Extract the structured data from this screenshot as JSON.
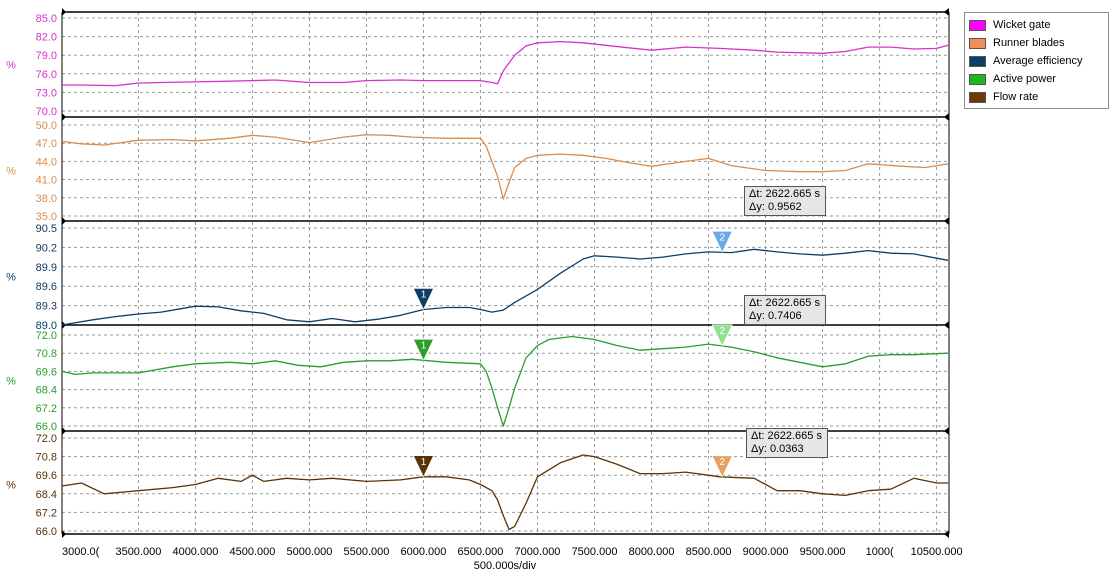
{
  "colors": {
    "wicket_gate": "#d433c8",
    "runner_blades": "#d88d4f",
    "average_efficiency": "#0e3d66",
    "active_power": "#2a9d2a",
    "flow_rate": "#5a3306",
    "cursor2_efficiency": "#6aa8e8",
    "cursor2_power": "#8fe08f",
    "cursor2_flow": "#e8a060",
    "grid": "#9a9a9a"
  },
  "legend": [
    {
      "label": "Wicket gate",
      "color": "#ff00ff"
    },
    {
      "label": "Runner blades",
      "color": "#f28c5a"
    },
    {
      "label": "Average efficiency",
      "color": "#0e3d66"
    },
    {
      "label": "Active power",
      "color": "#22b522"
    },
    {
      "label": "Flow rate",
      "color": "#6b3a0a"
    }
  ],
  "x_axis": {
    "label": "500.000s/div",
    "tick_labels": [
      "3000.0(",
      "3500.000",
      "4000.000",
      "4500.000",
      "5000.000",
      "5500.000",
      "6000.000",
      "6500.000",
      "7000.000",
      "7500.000",
      "8000.000",
      "8500.000",
      "9000.000",
      "9500.000",
      "1000(",
      "10500.000"
    ]
  },
  "cursors": {
    "c1_label": "1",
    "c2_label": "2",
    "c1_x": 6000,
    "c2_x": 8620
  },
  "delta_boxes": [
    {
      "dt": "Δt: 2622.665 s",
      "dy": "Δy: 0.9562"
    },
    {
      "dt": "Δt: 2622.665 s",
      "dy": "Δy: 0.7406"
    },
    {
      "dt": "Δt: 2622.665 s",
      "dy": "Δy: 0.0363"
    }
  ],
  "chart_data": [
    {
      "type": "line",
      "name": "Wicket gate",
      "ylabel": "%",
      "ylim": [
        70.0,
        85.0
      ],
      "ytick_labels": [
        "85.0",
        "82.0",
        "79.0",
        "76.0",
        "73.0",
        "70.0"
      ],
      "x": [
        2830,
        3000,
        3300,
        3400,
        3500,
        3700,
        4000,
        4300,
        4500,
        4700,
        5000,
        5300,
        5500,
        5800,
        6000,
        6300,
        6500,
        6600,
        6650,
        6700,
        6800,
        6900,
        7000,
        7200,
        7400,
        7600,
        7800,
        8000,
        8300,
        8600,
        8900,
        9100,
        9300,
        9500,
        9700,
        9900,
        10100,
        10300,
        10500,
        10600
      ],
      "y": [
        74.2,
        74.2,
        74.1,
        74.3,
        74.5,
        74.6,
        74.7,
        74.8,
        74.9,
        75.0,
        74.6,
        74.6,
        74.9,
        75.0,
        74.9,
        74.9,
        74.9,
        74.6,
        74.4,
        76.5,
        79.0,
        80.5,
        81.0,
        81.2,
        81.0,
        80.6,
        80.2,
        79.8,
        80.3,
        80.1,
        79.8,
        79.5,
        79.4,
        79.3,
        79.6,
        80.3,
        80.3,
        80.0,
        80.1,
        80.6
      ]
    },
    {
      "type": "line",
      "name": "Runner blades",
      "ylabel": "%",
      "ylim": [
        35.0,
        50.0
      ],
      "ytick_labels": [
        "50.0",
        "47.0",
        "44.0",
        "41.0",
        "38.0",
        "35.0"
      ],
      "x": [
        2830,
        3000,
        3200,
        3500,
        3800,
        4000,
        4300,
        4500,
        4700,
        5000,
        5300,
        5500,
        5700,
        5900,
        6200,
        6500,
        6550,
        6600,
        6650,
        6700,
        6750,
        6800,
        6900,
        7000,
        7200,
        7400,
        7600,
        7800,
        8000,
        8300,
        8500,
        8700,
        9000,
        9300,
        9500,
        9700,
        9900,
        10200,
        10400,
        10600
      ],
      "y": [
        47.3,
        46.9,
        46.7,
        47.5,
        47.6,
        47.4,
        47.8,
        48.3,
        48.0,
        47.1,
        48.0,
        48.4,
        48.3,
        48.0,
        47.8,
        47.8,
        46.5,
        44.0,
        41.5,
        37.8,
        40.5,
        43.0,
        44.5,
        45.0,
        45.2,
        45.0,
        44.5,
        43.8,
        43.2,
        44.0,
        44.5,
        43.3,
        42.5,
        42.3,
        42.3,
        42.5,
        43.6,
        43.2,
        43.0,
        43.6
      ]
    },
    {
      "type": "line",
      "name": "Average efficiency",
      "ylabel": "%",
      "ylim": [
        89.0,
        90.5
      ],
      "ytick_labels": [
        "90.5",
        "90.2",
        "89.9",
        "89.6",
        "89.3",
        "89.0"
      ],
      "x": [
        2830,
        3100,
        3300,
        3500,
        3700,
        3900,
        4000,
        4200,
        4400,
        4600,
        4800,
        5000,
        5200,
        5400,
        5600,
        5800,
        6000,
        6200,
        6400,
        6500,
        6600,
        6700,
        6800,
        7000,
        7200,
        7400,
        7500,
        7700,
        7900,
        8100,
        8300,
        8500,
        8700,
        8900,
        9100,
        9300,
        9500,
        9700,
        9900,
        10100,
        10300,
        10600
      ],
      "y": [
        89.0,
        89.08,
        89.13,
        89.17,
        89.2,
        89.26,
        89.29,
        89.28,
        89.22,
        89.18,
        89.08,
        89.05,
        89.1,
        89.05,
        89.09,
        89.15,
        89.24,
        89.27,
        89.27,
        89.24,
        89.2,
        89.23,
        89.35,
        89.55,
        89.8,
        90.02,
        90.07,
        90.05,
        90.02,
        90.05,
        90.1,
        90.13,
        90.12,
        90.17,
        90.13,
        90.1,
        90.08,
        90.11,
        90.15,
        90.11,
        90.1,
        90.0
      ]
    },
    {
      "type": "line",
      "name": "Active power",
      "ylabel": "%",
      "ylim": [
        66.0,
        72.0
      ],
      "ytick_labels": [
        "72.0",
        "70.8",
        "69.6",
        "68.4",
        "67.2",
        "66.0"
      ],
      "x": [
        2830,
        2950,
        3100,
        3300,
        3500,
        3800,
        4000,
        4300,
        4500,
        4700,
        4900,
        5100,
        5300,
        5500,
        5700,
        5900,
        6200,
        6500,
        6550,
        6600,
        6650,
        6700,
        6750,
        6800,
        6900,
        7000,
        7100,
        7300,
        7500,
        7700,
        7900,
        8100,
        8300,
        8500,
        8700,
        8900,
        9100,
        9300,
        9500,
        9700,
        9900,
        10100,
        10300,
        10600
      ],
      "y": [
        69.6,
        69.4,
        69.5,
        69.5,
        69.5,
        69.9,
        70.1,
        70.2,
        70.1,
        70.3,
        70.0,
        69.9,
        70.2,
        70.3,
        70.3,
        70.4,
        70.2,
        70.1,
        69.6,
        68.5,
        67.2,
        66.0,
        67.2,
        68.5,
        70.5,
        71.3,
        71.7,
        71.9,
        71.7,
        71.3,
        71.0,
        71.1,
        71.2,
        71.4,
        71.2,
        70.9,
        70.5,
        70.2,
        69.9,
        70.1,
        70.6,
        70.7,
        70.7,
        70.8
      ]
    },
    {
      "type": "line",
      "name": "Flow rate",
      "ylabel": "%",
      "ylim": [
        66.0,
        72.0
      ],
      "ytick_labels": [
        "72.0",
        "70.8",
        "69.6",
        "68.4",
        "67.2",
        "66.0"
      ],
      "x": [
        2830,
        3000,
        3200,
        3500,
        3800,
        4000,
        4200,
        4400,
        4500,
        4600,
        4800,
        5000,
        5200,
        5500,
        5800,
        6000,
        6200,
        6400,
        6500,
        6600,
        6650,
        6700,
        6750,
        6800,
        6900,
        7000,
        7200,
        7400,
        7500,
        7700,
        7900,
        8100,
        8300,
        8600,
        8900,
        9100,
        9300,
        9500,
        9700,
        9900,
        10100,
        10300,
        10500,
        10600
      ],
      "y": [
        68.9,
        69.1,
        68.4,
        68.6,
        68.8,
        69.0,
        69.4,
        69.2,
        69.6,
        69.2,
        69.4,
        69.3,
        69.4,
        69.2,
        69.3,
        69.5,
        69.5,
        69.3,
        69.0,
        68.6,
        68.0,
        67.0,
        66.1,
        66.3,
        67.8,
        69.5,
        70.4,
        70.9,
        70.8,
        70.3,
        69.7,
        69.7,
        69.8,
        69.5,
        69.4,
        68.6,
        68.6,
        68.4,
        68.3,
        68.6,
        68.7,
        69.4,
        69.1,
        69.1
      ]
    }
  ]
}
